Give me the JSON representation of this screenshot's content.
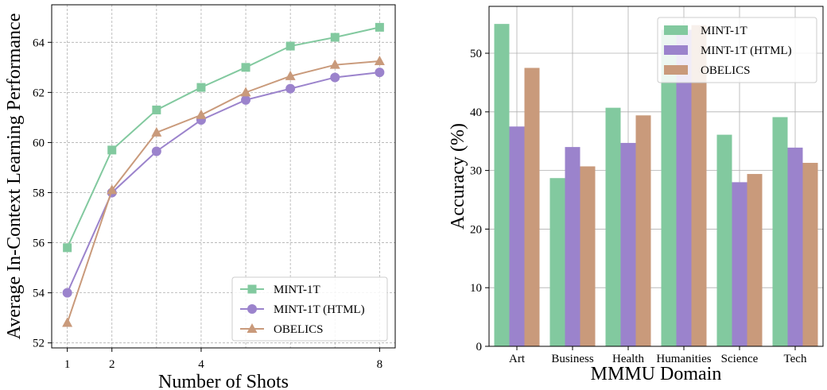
{
  "chart_data": [
    {
      "type": "line",
      "xlabel": "Number of Shots",
      "ylabel": "Average In-Context Learning Performance",
      "x": [
        1,
        2,
        3,
        4,
        5,
        6,
        7,
        8
      ],
      "x_ticks": [
        "1",
        "2",
        "4",
        "8"
      ],
      "x_tick_values": [
        1,
        2,
        4,
        8
      ],
      "ylim": [
        51.8,
        65.5
      ],
      "y_ticks": [
        "52",
        "54",
        "56",
        "58",
        "60",
        "62",
        "64"
      ],
      "y_tick_values": [
        52,
        54,
        56,
        58,
        60,
        62,
        64
      ],
      "grid": true,
      "legend_position": "lower-right",
      "series": [
        {
          "name": "MINT-1T",
          "color": "#82c99f",
          "marker": "square",
          "values": [
            55.8,
            59.7,
            61.3,
            62.2,
            63.0,
            63.85,
            64.2,
            64.6
          ]
        },
        {
          "name": "MINT-1T (HTML)",
          "color": "#9b83cc",
          "marker": "circle",
          "values": [
            54.0,
            58.0,
            59.65,
            60.9,
            61.7,
            62.15,
            62.6,
            62.8
          ]
        },
        {
          "name": "OBELICS",
          "color": "#c99a7b",
          "marker": "triangle",
          "values": [
            52.8,
            58.1,
            60.4,
            61.1,
            62.0,
            62.65,
            63.1,
            63.25
          ]
        }
      ]
    },
    {
      "type": "bar",
      "xlabel": "MMMU Domain",
      "ylabel": "Accuracy (%)",
      "categories": [
        "Art",
        "Business",
        "Health",
        "Humanities",
        "Science",
        "Tech"
      ],
      "ylim": [
        0,
        58
      ],
      "y_ticks": [
        "0",
        "10",
        "20",
        "30",
        "40",
        "50"
      ],
      "y_tick_values": [
        0,
        10,
        20,
        30,
        40,
        50
      ],
      "grid": true,
      "legend_position": "top-right",
      "series": [
        {
          "name": "MINT-1T",
          "color": "#82c99f",
          "values": [
            55.0,
            28.7,
            40.7,
            54.0,
            36.1,
            39.1
          ]
        },
        {
          "name": "MINT-1T (HTML)",
          "color": "#9b83cc",
          "values": [
            37.5,
            34.0,
            34.7,
            54.0,
            28.0,
            33.9
          ]
        },
        {
          "name": "OBELICS",
          "color": "#c99a7b",
          "values": [
            47.5,
            30.7,
            39.4,
            54.8,
            29.4,
            31.3
          ]
        }
      ]
    }
  ]
}
